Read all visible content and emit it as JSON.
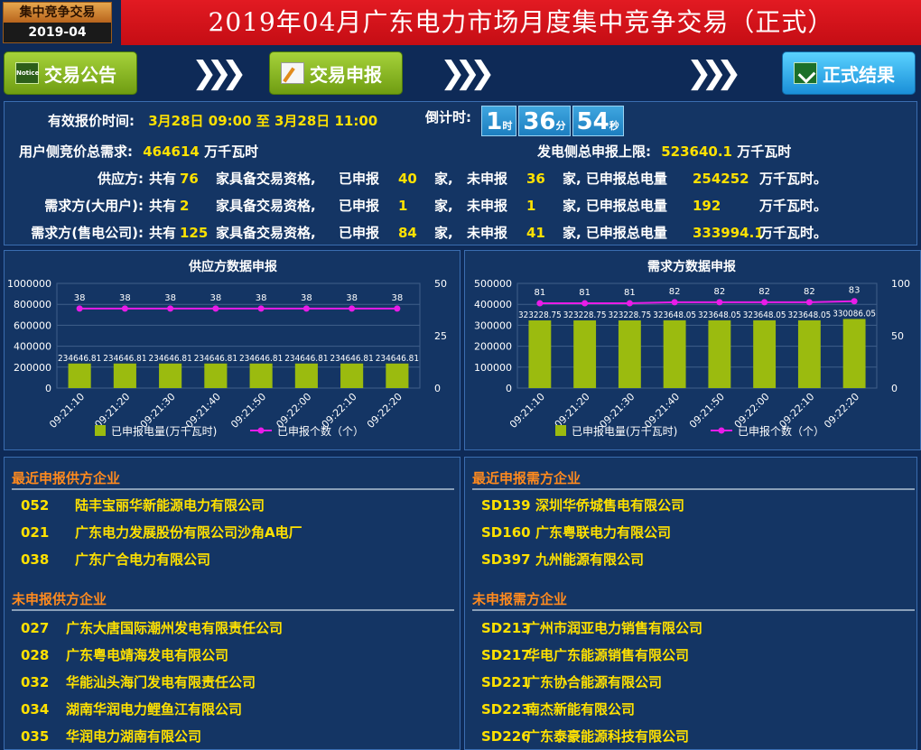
{
  "header": {
    "badge_top": "集中竞争交易",
    "badge_bottom": "2019-04",
    "title": "2019年04月广东电力市场月度集中竞争交易（正式）"
  },
  "nav": {
    "announcement": "交易公告",
    "bid": "交易申报",
    "result": "正式结果",
    "notice_icon_text": "Notice"
  },
  "info": {
    "time_label": "有效报价时间:",
    "time_value": "3月28日 09:00 至 3月28日 11:00",
    "countdown_label": "倒计时:",
    "countdown": [
      {
        "num": "1",
        "unit": "时"
      },
      {
        "num": "36",
        "unit": "分"
      },
      {
        "num": "54",
        "unit": "秒"
      }
    ],
    "user_demand_label": "用户侧竞价总需求:",
    "user_demand_value": "464614",
    "user_demand_unit": "万千瓦时",
    "gen_limit_label": "发电侧总申报上限:",
    "gen_limit_value": "523640.1",
    "gen_limit_unit": "万千瓦时",
    "rows": [
      {
        "label": "供应方:",
        "total": "76",
        "declared": "40",
        "undeclared": "36",
        "energy": "254252",
        "unit": "万千瓦时。"
      },
      {
        "label": "需求方(大用户):",
        "total": "2",
        "declared": "1",
        "undeclared": "1",
        "energy": "192",
        "unit": "万千瓦时。"
      },
      {
        "label": "需求方(售电公司):",
        "total": "125",
        "declared": "84",
        "undeclared": "41",
        "energy": "333994.1",
        "unit": "万千瓦时。"
      }
    ],
    "txt_total": "共有",
    "txt_qualified": "家具备交易资格,",
    "txt_declared": "已申报",
    "txt_jia": "家,",
    "txt_undeclared": "未申报",
    "txt_energy": "家,  已申报总电量"
  },
  "chart_data": [
    {
      "type": "bar",
      "title": "供应方数据申报",
      "categories": [
        "09:21:10",
        "09:21:20",
        "09:21:30",
        "09:21:40",
        "09:21:50",
        "09:22:00",
        "09:22:10",
        "09:22:20"
      ],
      "series": [
        {
          "name": "已申报电量(万千瓦时)",
          "type": "bar",
          "axis": "left",
          "color": "#9bbb0f",
          "values": [
            234646.81,
            234646.81,
            234646.81,
            234646.81,
            234646.81,
            234646.81,
            234646.81,
            234646.81
          ],
          "labels": [
            "234646.81",
            "234646.81",
            "234646.81",
            "234646.81",
            "234646.81",
            "234646.81",
            "234646.81",
            "234646.81"
          ]
        },
        {
          "name": "已申报个数（个）",
          "type": "line",
          "axis": "right",
          "color": "#e81ce8",
          "values": [
            38,
            38,
            38,
            38,
            38,
            38,
            38,
            38
          ]
        }
      ],
      "left_ticks": [
        "1000000",
        "800000",
        "600000",
        "400000",
        "200000",
        "0"
      ],
      "ylim": [
        0,
        1000000
      ],
      "right_ticks": [
        "50",
        "25",
        "0"
      ],
      "y2lim": [
        0,
        50
      ],
      "grid": true,
      "legend": "bottom"
    },
    {
      "type": "bar",
      "title": "需求方数据申报",
      "categories": [
        "09:21:10",
        "09:21:20",
        "09:21:30",
        "09:21:40",
        "09:21:50",
        "09:22:00",
        "09:22:10",
        "09:22:20"
      ],
      "series": [
        {
          "name": "已申报电量(万千瓦时)",
          "type": "bar",
          "axis": "left",
          "color": "#9bbb0f",
          "values": [
            323228.75,
            323228.75,
            323228.75,
            323648.05,
            323648.05,
            323648.05,
            323648.05,
            330086.05
          ],
          "labels": [
            "323228.75",
            "323228.75",
            "323228.75",
            "323648.05",
            "323648.05",
            "323648.05",
            "323648.05",
            "330086.05"
          ]
        },
        {
          "name": "已申报个数（个）",
          "type": "line",
          "axis": "right",
          "color": "#e81ce8",
          "values": [
            81,
            81,
            81,
            82,
            82,
            82,
            82,
            83
          ]
        }
      ],
      "left_ticks": [
        "500000",
        "400000",
        "300000",
        "200000",
        "100000",
        "0"
      ],
      "ylim": [
        0,
        500000
      ],
      "right_ticks": [
        "100",
        "50",
        "0"
      ],
      "y2lim": [
        0,
        100
      ],
      "grid": true,
      "legend": "bottom"
    }
  ],
  "lists": {
    "recent_supply_title": "最近申报供方企业",
    "recent_supply": [
      {
        "code": "052",
        "name": "陆丰宝丽华新能源电力有限公司"
      },
      {
        "code": "021",
        "name": "广东电力发展股份有限公司沙角A电厂"
      },
      {
        "code": "038",
        "name": "广东广合电力有限公司"
      }
    ],
    "undeclared_supply_title": "未申报供方企业",
    "undeclared_supply": [
      {
        "code": "027",
        "name": "广东大唐国际潮州发电有限责任公司"
      },
      {
        "code": "028",
        "name": "广东粤电靖海发电有限公司"
      },
      {
        "code": "032",
        "name": "华能汕头海门发电有限责任公司"
      },
      {
        "code": "034",
        "name": "湖南华润电力鲤鱼江有限公司"
      },
      {
        "code": "035",
        "name": "华润电力湖南有限公司"
      }
    ],
    "recent_demand_title": "最近申报需方企业",
    "recent_demand": [
      {
        "code": "SD139",
        "name": "深圳华侨城售电有限公司"
      },
      {
        "code": "SD160",
        "name": "广东粤联电力有限公司"
      },
      {
        "code": "SD397",
        "name": "九州能源有限公司"
      }
    ],
    "undeclared_demand_title": "未申报需方企业",
    "undeclared_demand": [
      {
        "code": "SD213",
        "name": "广州市润亚电力销售有限公司"
      },
      {
        "code": "SD217",
        "name": "华电广东能源销售有限公司"
      },
      {
        "code": "SD221",
        "name": "广东协合能源有限公司"
      },
      {
        "code": "SD223",
        "name": "南杰新能有限公司"
      },
      {
        "code": "SD226",
        "name": "广东泰豪能源科技有限公司"
      }
    ]
  }
}
